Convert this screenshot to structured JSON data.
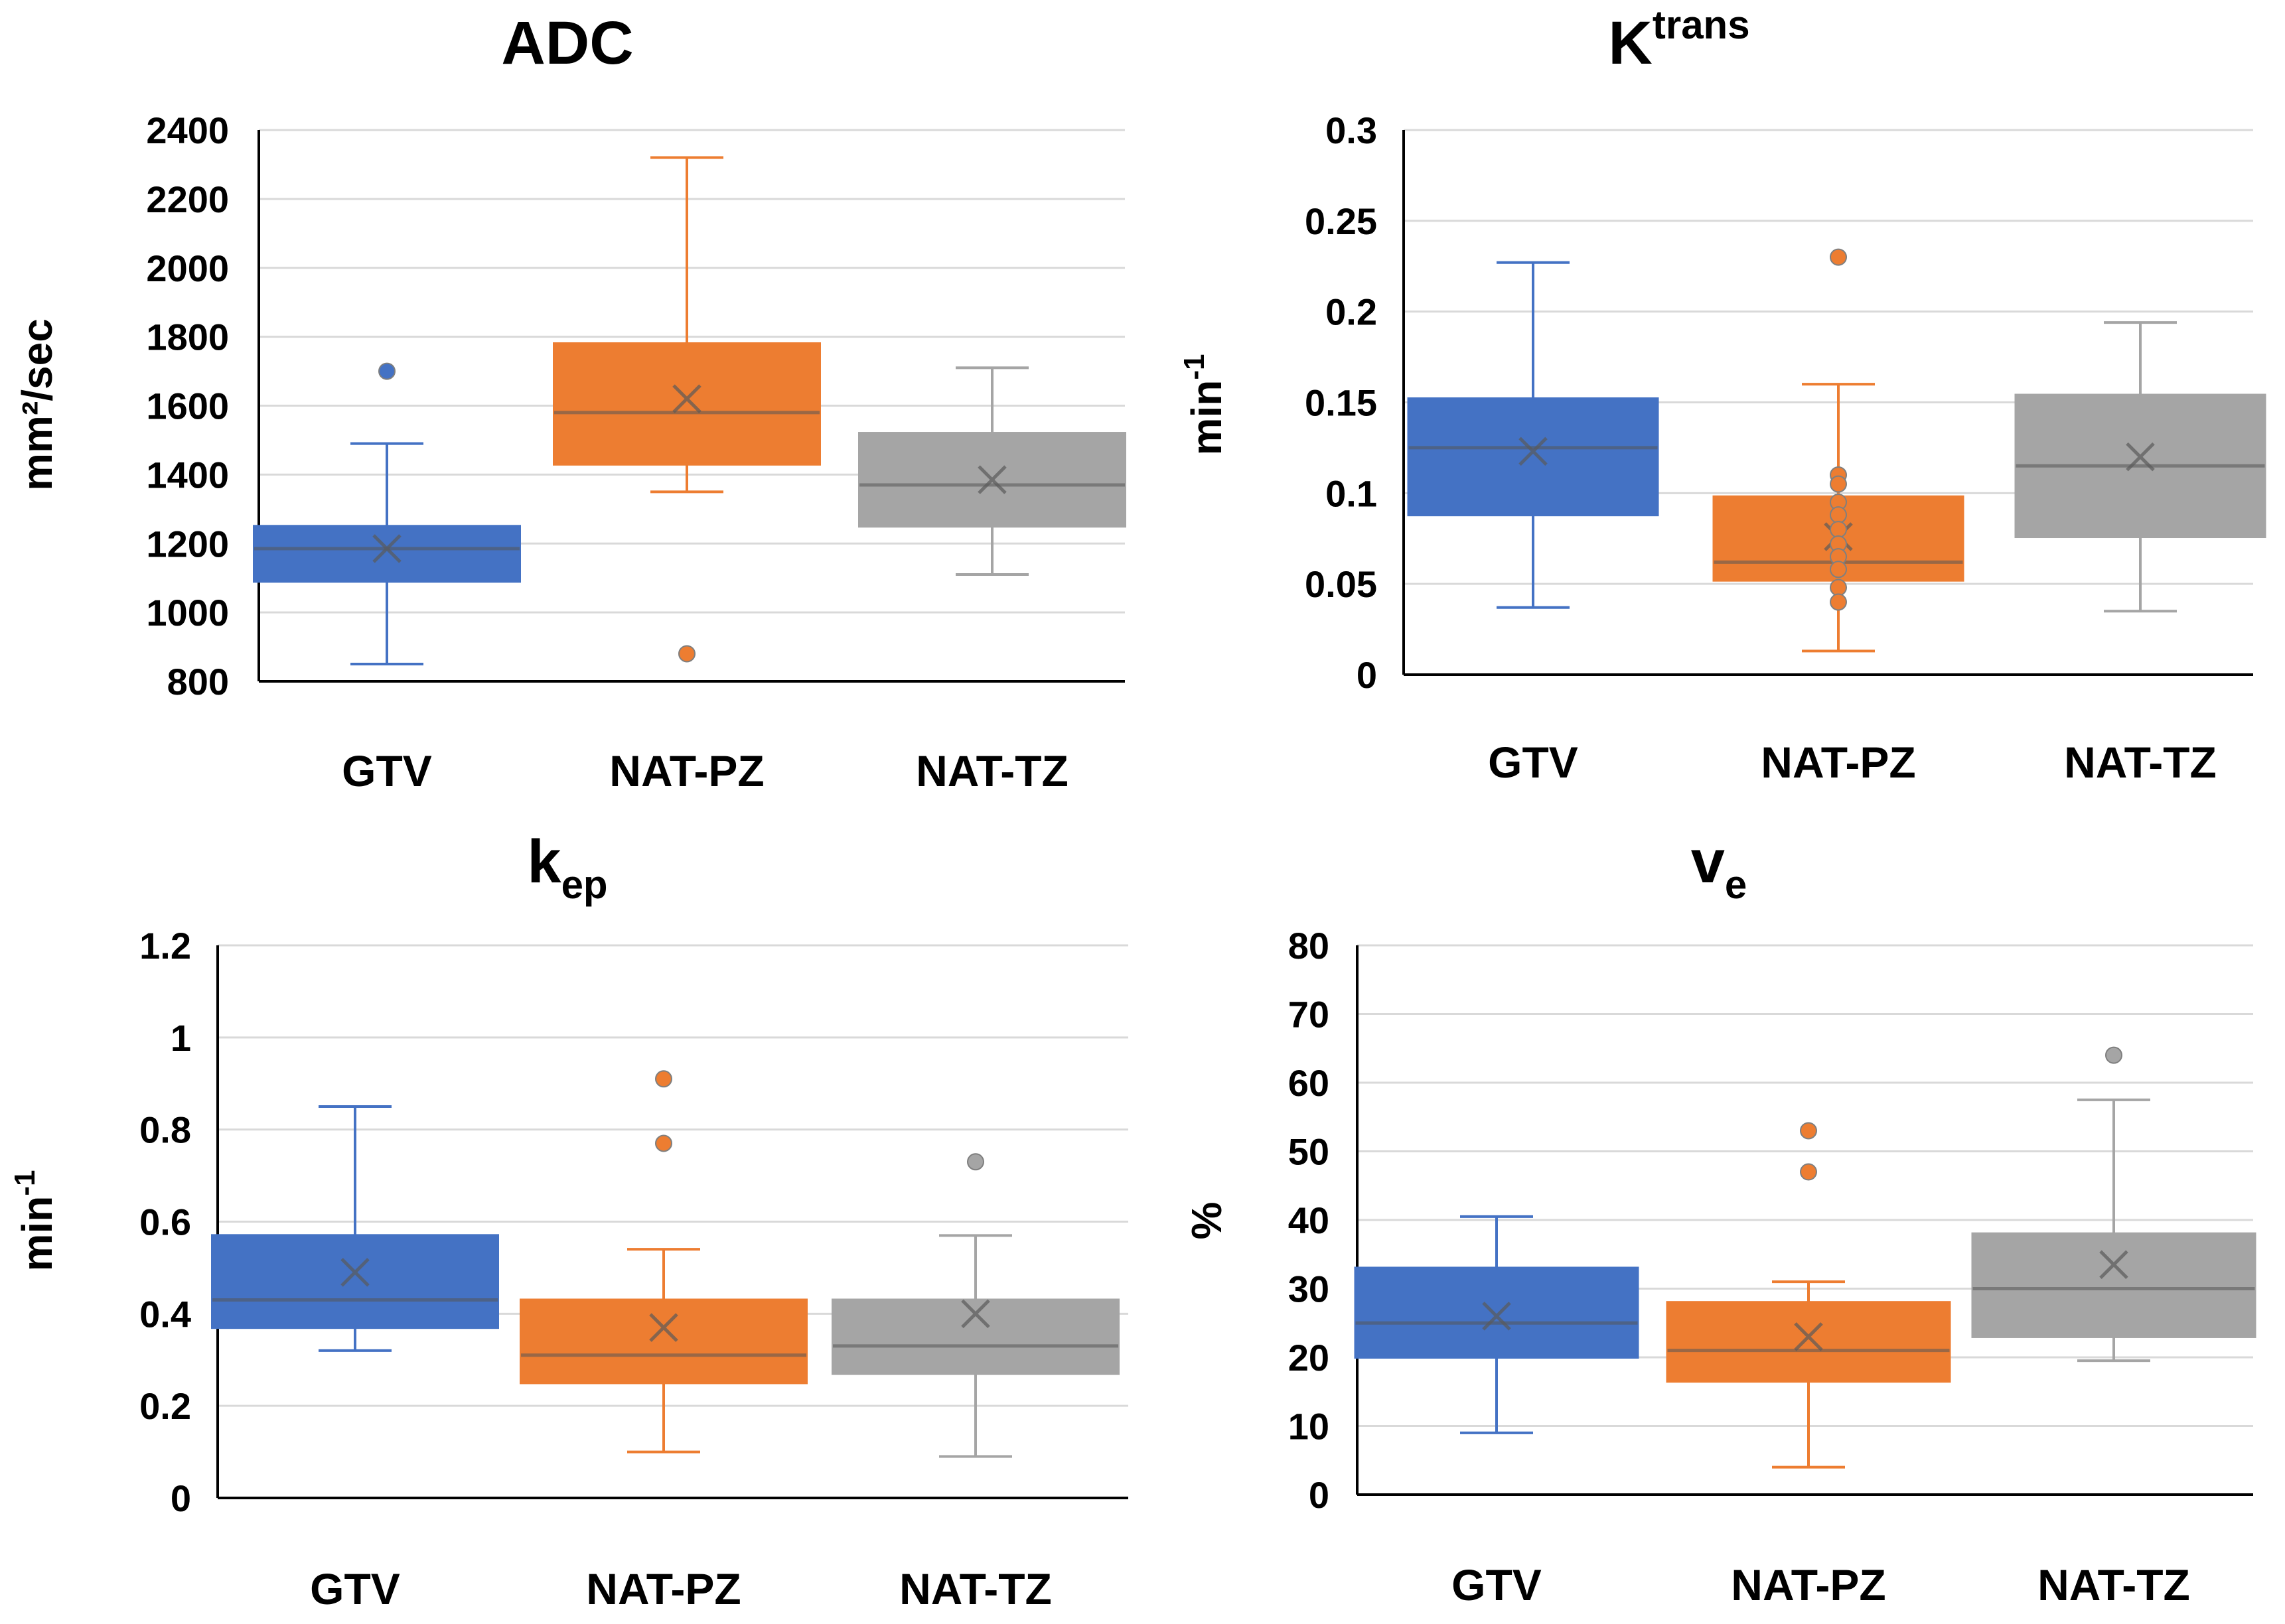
{
  "chart_data": [
    {
      "type": "box",
      "title": "ADC",
      "ylabel": "mm²/sec",
      "ylim": [
        800,
        2400
      ],
      "yticks": [
        "2400",
        "2200",
        "2000",
        "1800",
        "1600",
        "1400",
        "1200",
        "1000",
        "800"
      ],
      "categories": [
        "GTV",
        "NAT-PZ",
        "NAT-TZ"
      ],
      "colors": [
        "#4472c4",
        "#ed7d31",
        "#a5a5a5"
      ],
      "boxes": [
        {
          "min": 850,
          "q1": 1090,
          "median": 1185,
          "q3": 1250,
          "max": 1490,
          "mean": 1185,
          "outliers": [
            1700
          ]
        },
        {
          "min": 1350,
          "q1": 1430,
          "median": 1580,
          "q3": 1780,
          "max": 2320,
          "mean": 1620,
          "outliers": [
            880
          ]
        },
        {
          "min": 1110,
          "q1": 1250,
          "median": 1370,
          "q3": 1520,
          "max": 1710,
          "mean": 1385,
          "outliers": []
        }
      ]
    },
    {
      "type": "box",
      "title": "K",
      "title_sup": "trans",
      "ylabel": "min",
      "ylabel_sup": "-1",
      "ylim": [
        0,
        0.3
      ],
      "yticks": [
        "0.3",
        "0.25",
        "0.2",
        "0.15",
        "0.1",
        "0.05",
        "0"
      ],
      "categories": [
        "GTV",
        "NAT-PZ",
        "NAT-TZ"
      ],
      "colors": [
        "#4472c4",
        "#ed7d31",
        "#a5a5a5"
      ],
      "boxes": [
        {
          "min": 0.037,
          "q1": 0.088,
          "median": 0.125,
          "q3": 0.152,
          "max": 0.227,
          "mean": 0.123,
          "outliers": []
        },
        {
          "min": 0.013,
          "q1": 0.052,
          "median": 0.062,
          "q3": 0.098,
          "max": 0.16,
          "mean": 0.076,
          "outliers": [
            0.23,
            0.11,
            0.105,
            0.095,
            0.088,
            0.08,
            0.072,
            0.065,
            0.058,
            0.048,
            0.04
          ]
        },
        {
          "min": 0.035,
          "q1": 0.076,
          "median": 0.115,
          "q3": 0.154,
          "max": 0.194,
          "mean": 0.12,
          "outliers": []
        }
      ]
    },
    {
      "type": "box",
      "title": "k",
      "title_sub": "ep",
      "ylabel": "min",
      "ylabel_sup": "-1",
      "ylim": [
        0,
        1.2
      ],
      "yticks": [
        "1.2",
        "1",
        "0.8",
        "0.6",
        "0.4",
        "0.2",
        "0"
      ],
      "categories": [
        "GTV",
        "NAT-PZ",
        "NAT-TZ"
      ],
      "colors": [
        "#4472c4",
        "#ed7d31",
        "#a5a5a5"
      ],
      "boxes": [
        {
          "min": 0.32,
          "q1": 0.37,
          "median": 0.43,
          "q3": 0.57,
          "max": 0.85,
          "mean": 0.49,
          "outliers": []
        },
        {
          "min": 0.1,
          "q1": 0.25,
          "median": 0.31,
          "q3": 0.43,
          "max": 0.54,
          "mean": 0.37,
          "outliers": [
            0.91,
            0.77
          ]
        },
        {
          "min": 0.09,
          "q1": 0.27,
          "median": 0.33,
          "q3": 0.43,
          "max": 0.57,
          "mean": 0.4,
          "outliers": [
            0.73
          ]
        }
      ]
    },
    {
      "type": "box",
      "title": "v",
      "title_sub": "e",
      "ylabel": "%",
      "ylim": [
        0,
        80
      ],
      "yticks": [
        "80",
        "70",
        "60",
        "50",
        "40",
        "30",
        "20",
        "10",
        "0"
      ],
      "categories": [
        "GTV",
        "NAT-PZ",
        "NAT-TZ"
      ],
      "colors": [
        "#4472c4",
        "#ed7d31",
        "#a5a5a5"
      ],
      "boxes": [
        {
          "min": 9,
          "q1": 20,
          "median": 25,
          "q3": 33,
          "max": 40.5,
          "mean": 26,
          "outliers": []
        },
        {
          "min": 4,
          "q1": 16.5,
          "median": 21,
          "q3": 28,
          "max": 31,
          "mean": 23,
          "outliers": [
            53,
            47
          ]
        },
        {
          "min": 19.5,
          "q1": 23,
          "median": 30,
          "q3": 38,
          "max": 57.5,
          "mean": 33.5,
          "outliers": [
            64
          ]
        }
      ]
    }
  ]
}
